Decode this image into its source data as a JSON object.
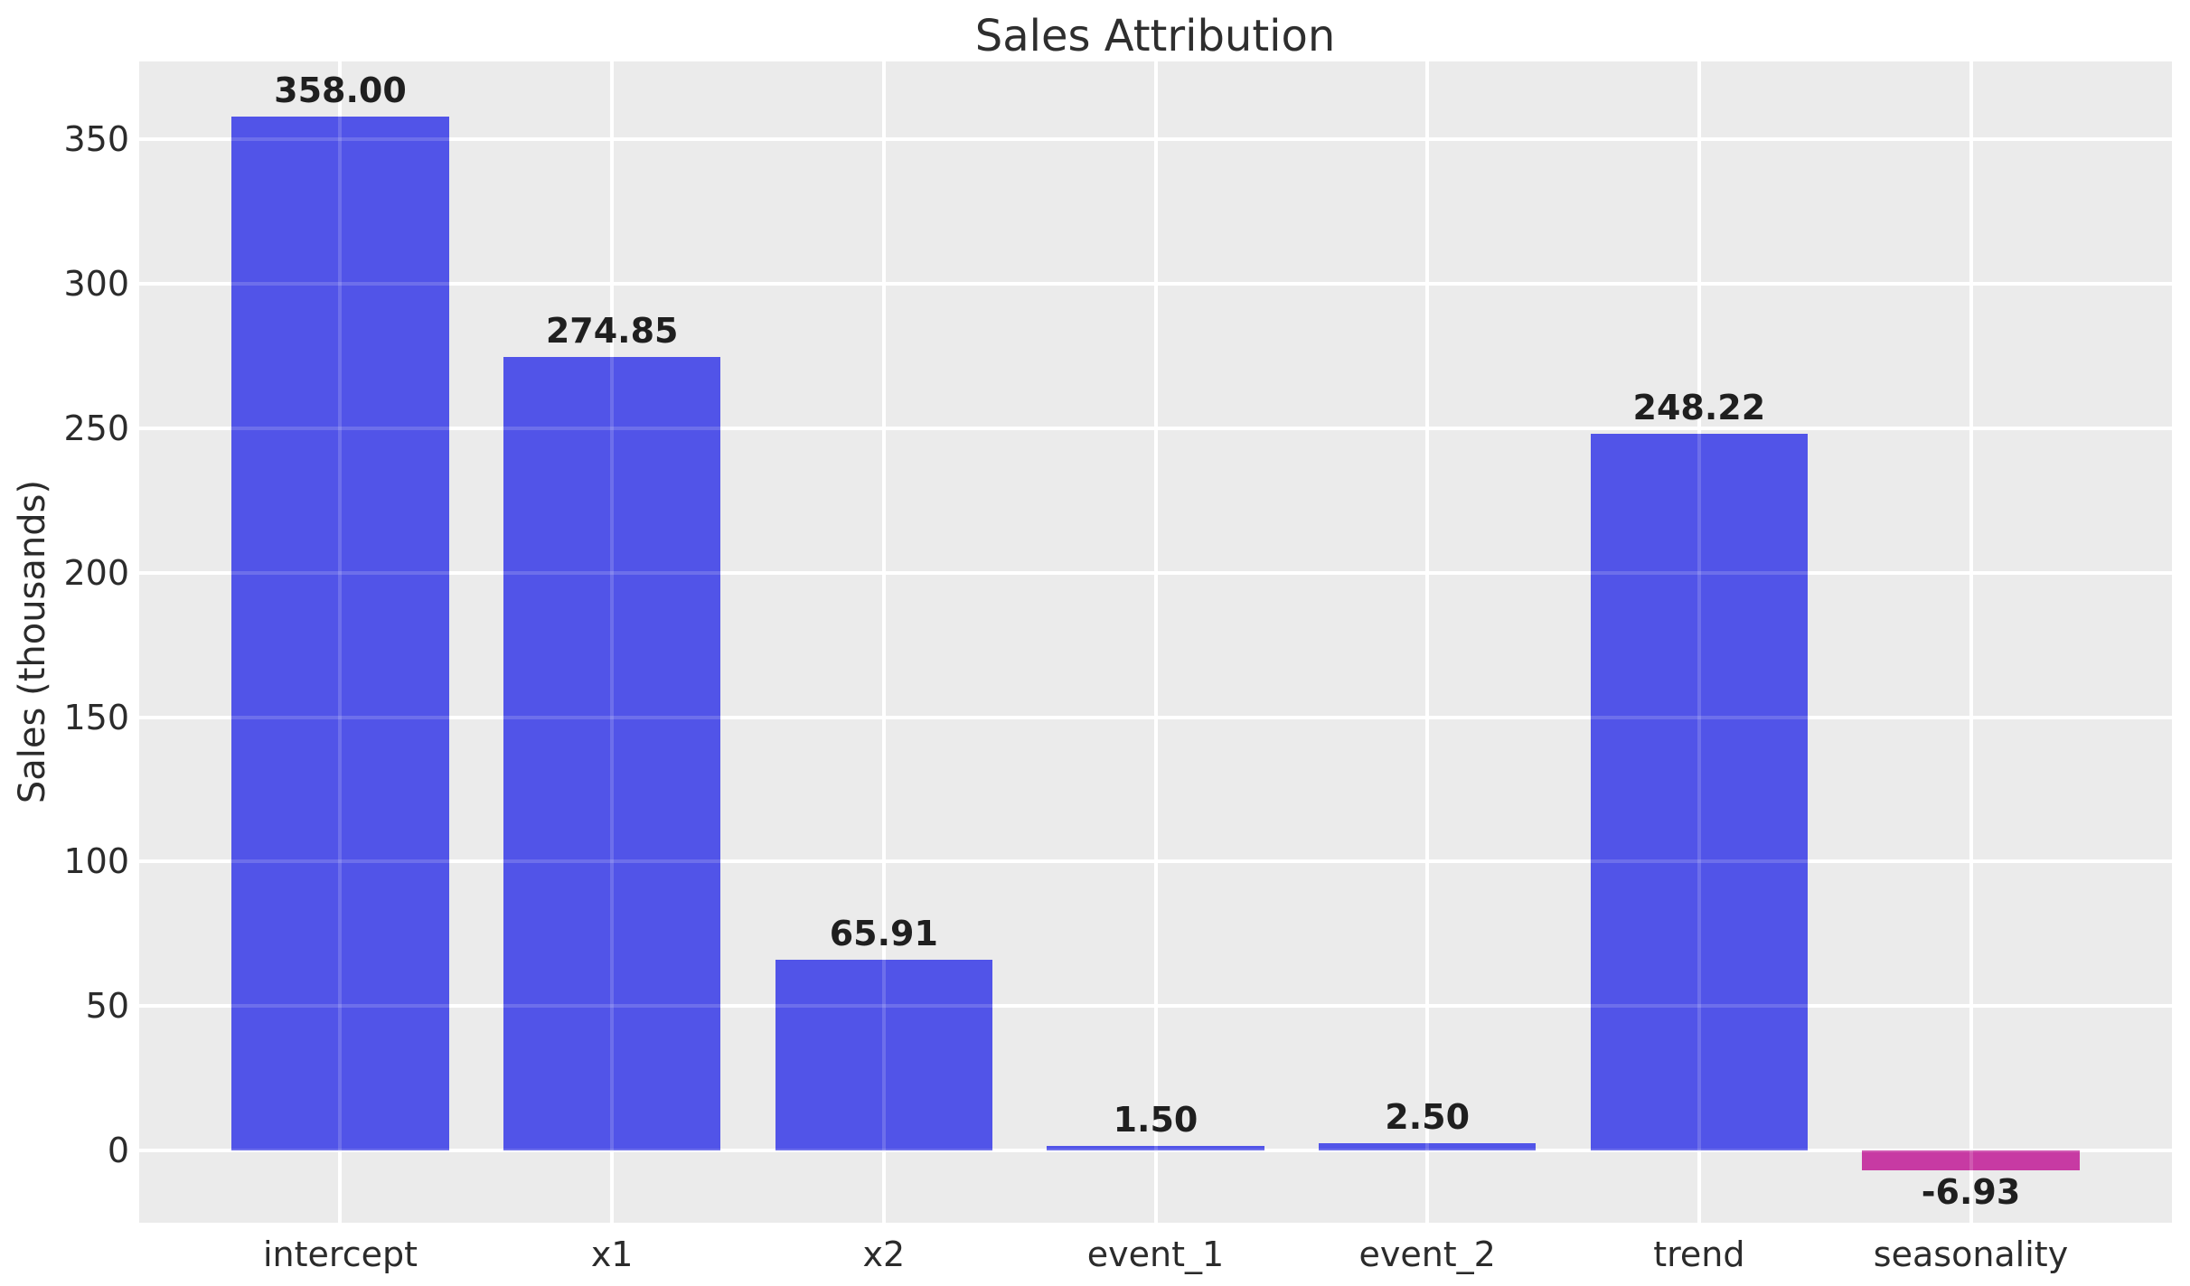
{
  "figure": {
    "title": "Sales Attribution",
    "background_color": "#FFFFFF",
    "plot_background_color": "#EBEBEB",
    "grid_color": "#FFFFFF",
    "text_color": "#2b2b2b"
  },
  "chart_data": {
    "type": "bar",
    "title": "Sales Attribution",
    "xlabel": "",
    "ylabel": "Sales (thousands)",
    "categories": [
      "intercept",
      "x1",
      "x2",
      "event_1",
      "event_2",
      "trend",
      "seasonality"
    ],
    "values": [
      358.0,
      274.85,
      65.91,
      1.5,
      2.5,
      248.22,
      -6.93
    ],
    "value_labels": [
      "358.00",
      "274.85",
      "65.91",
      "1.50",
      "2.50",
      "248.22",
      "-6.93"
    ],
    "bar_colors": [
      "#5154E8",
      "#5154E8",
      "#5154E8",
      "#5154E8",
      "#5154E8",
      "#5154E8",
      "#C73AA3"
    ],
    "positive_bar_color": "#5154E8",
    "negative_bar_color": "#C73AA3",
    "ytick_labels": [
      "0",
      "50",
      "100",
      "150",
      "200",
      "250",
      "300",
      "350"
    ],
    "yticks": [
      0,
      50,
      100,
      150,
      200,
      250,
      300,
      350
    ],
    "ylim": [
      -25,
      377
    ],
    "bar_width_fraction": 0.8,
    "grid": true,
    "legend_position": "none"
  }
}
